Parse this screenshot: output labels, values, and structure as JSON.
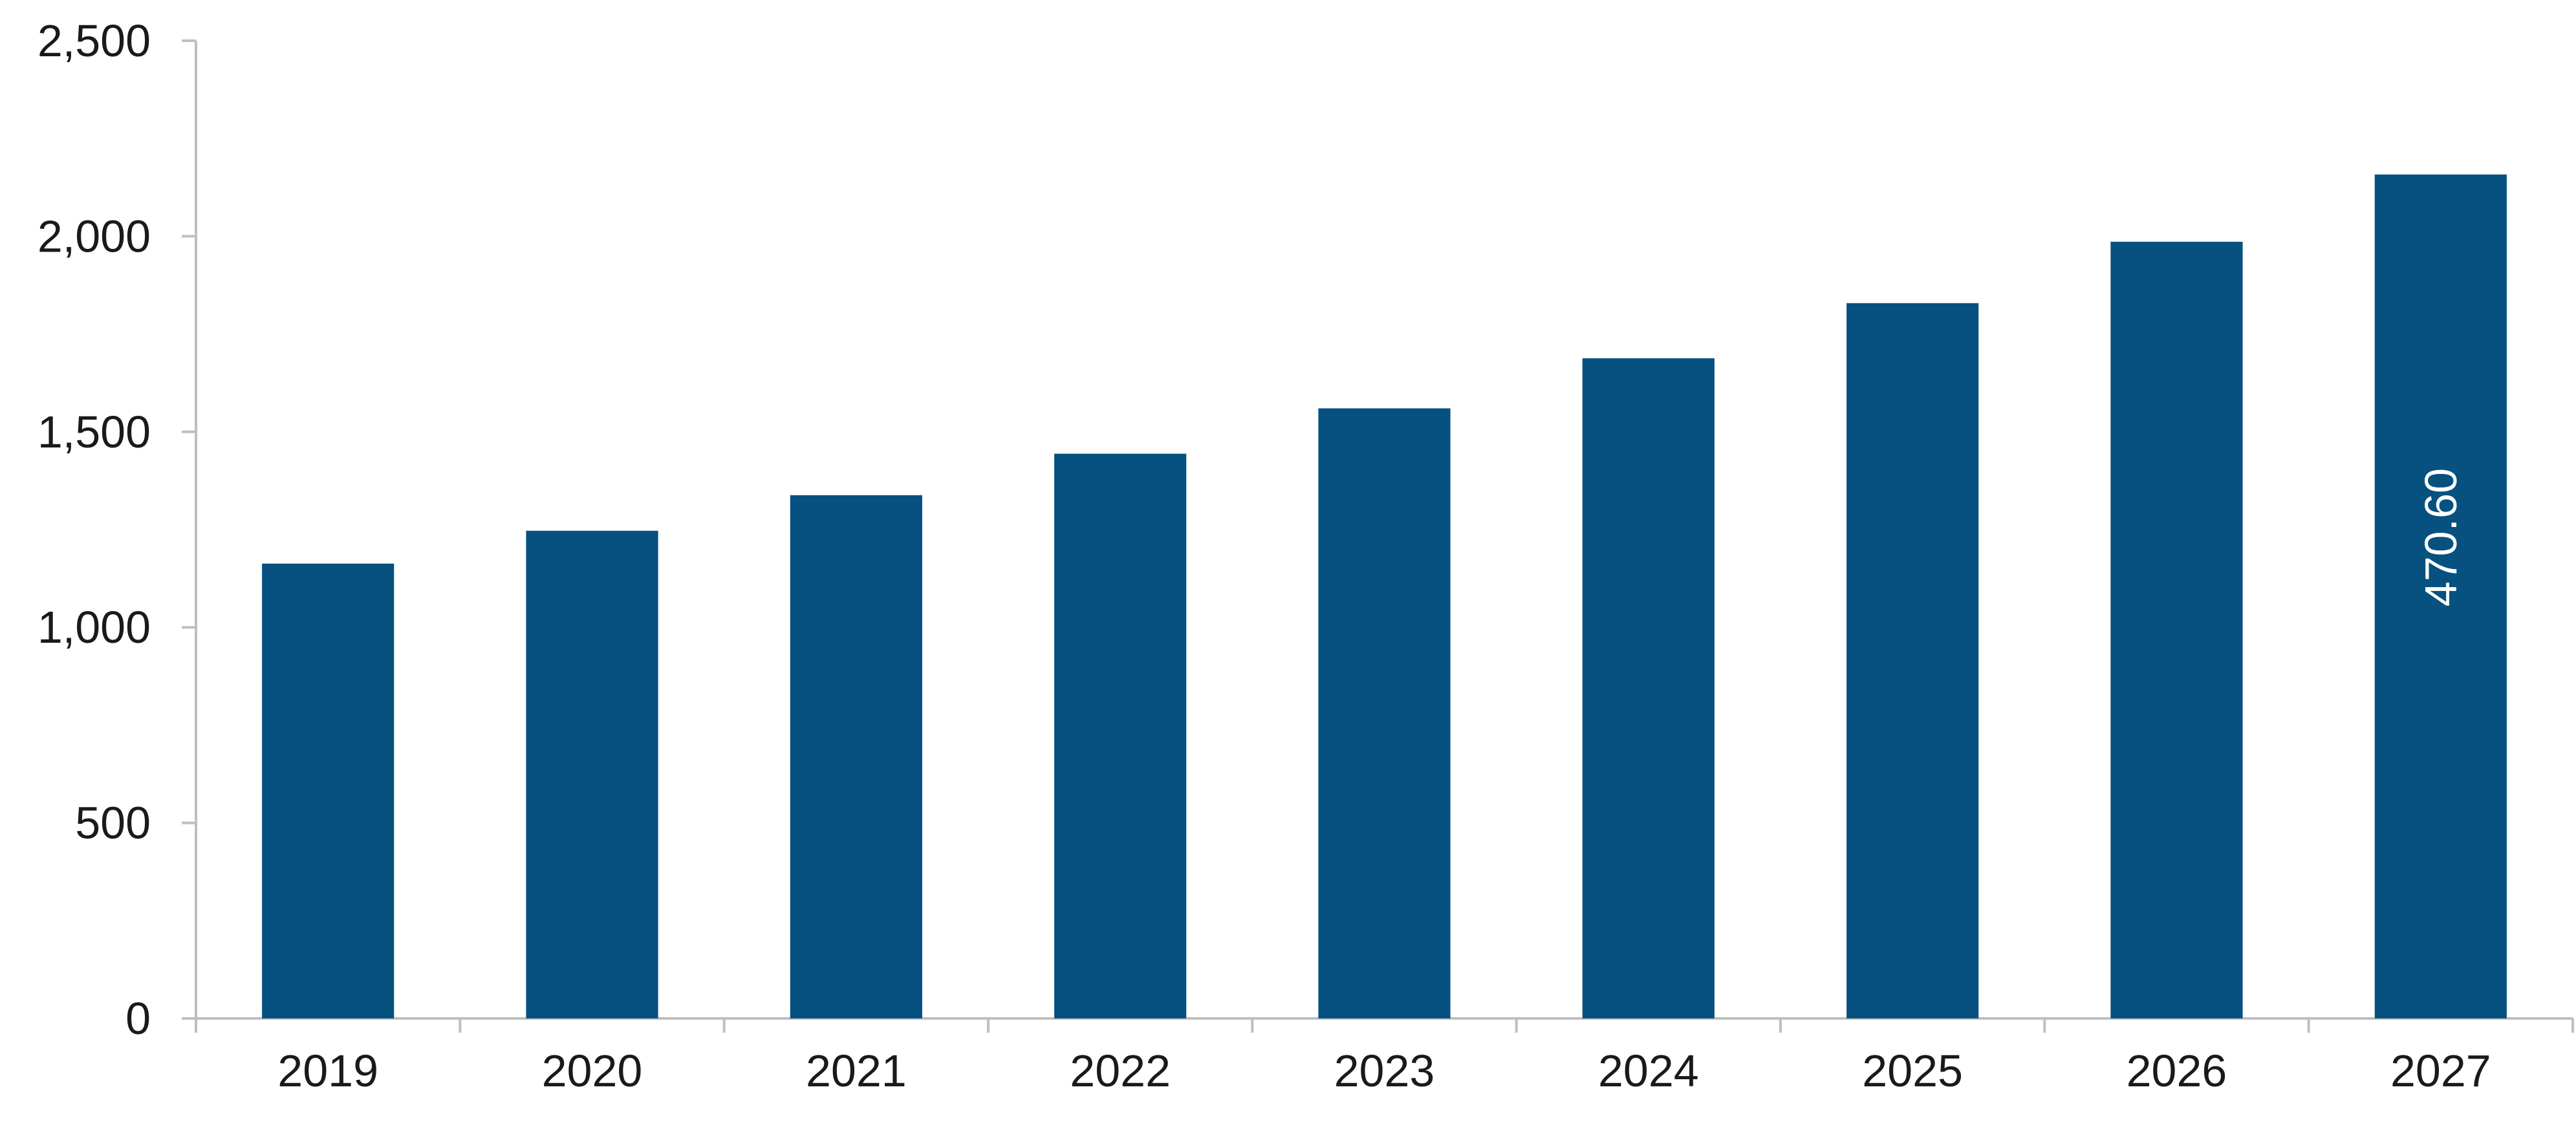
{
  "chart_data": {
    "type": "bar",
    "title": "",
    "xlabel": "",
    "ylabel": "",
    "categories": [
      "2019",
      "2020",
      "2021",
      "2022",
      "2023",
      "2024",
      "2025",
      "2026",
      "2027"
    ],
    "values": [
      1163,
      1247,
      1338,
      1444,
      1560,
      1688,
      1829,
      1986,
      2158
    ],
    "ylim": [
      0,
      2500
    ],
    "yticks": [
      0,
      500,
      1000,
      1500,
      2000,
      2500
    ],
    "ytick_labels": [
      "0",
      "500",
      "1,000",
      "1,500",
      "2,000",
      "2,500"
    ],
    "grid": false,
    "bar_color": "#065180",
    "annotations": [
      {
        "category": "2027",
        "text": "470.60",
        "rotation": "vertical"
      }
    ]
  }
}
